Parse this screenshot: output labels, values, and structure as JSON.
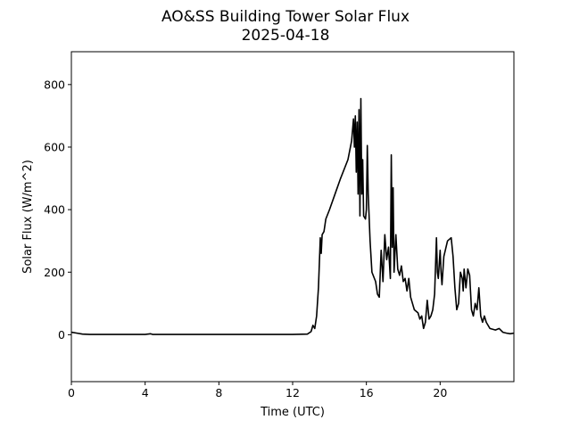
{
  "chart_data": {
    "type": "line",
    "title": "AO&SS Building Tower Solar Flux",
    "subtitle": "2025-04-18",
    "x_label": "Time (UTC)",
    "y_label": "Solar Flux (W/m^2)",
    "xlim": [
      0,
      24
    ],
    "ylim": [
      -150,
      905
    ],
    "xticks": [
      0,
      4,
      8,
      12,
      16,
      20
    ],
    "yticks": [
      0,
      200,
      400,
      600,
      800
    ],
    "series": [
      {
        "color": "#000000",
        "x": [
          0,
          0.3,
          0.6,
          1,
          2,
          3,
          4,
          4.3,
          4.4,
          5,
          6,
          7,
          8,
          9,
          10,
          11,
          12,
          12.8,
          13.0,
          13.1,
          13.2,
          13.3,
          13.4,
          13.5,
          13.55,
          13.6,
          13.7,
          13.8,
          14.0,
          14.3,
          14.6,
          15.0,
          15.2,
          15.3,
          15.35,
          15.4,
          15.45,
          15.5,
          15.55,
          15.6,
          15.65,
          15.7,
          15.75,
          15.8,
          15.85,
          15.95,
          16.0,
          16.05,
          16.1,
          16.2,
          16.3,
          16.5,
          16.6,
          16.7,
          16.8,
          16.9,
          17.0,
          17.1,
          17.2,
          17.3,
          17.35,
          17.4,
          17.45,
          17.5,
          17.6,
          17.7,
          17.8,
          17.9,
          18.0,
          18.1,
          18.2,
          18.3,
          18.4,
          18.5,
          18.6,
          18.8,
          18.9,
          19.0,
          19.1,
          19.2,
          19.3,
          19.4,
          19.5,
          19.6,
          19.7,
          19.8,
          19.85,
          19.9,
          20.0,
          20.05,
          20.1,
          20.2,
          20.4,
          20.6,
          20.7,
          20.8,
          20.9,
          21.0,
          21.1,
          21.2,
          21.25,
          21.3,
          21.4,
          21.5,
          21.6,
          21.7,
          21.8,
          21.9,
          22.0,
          22.1,
          22.2,
          22.3,
          22.4,
          22.5,
          22.7,
          23.0,
          23.2,
          23.4,
          23.6,
          23.8,
          24
        ],
        "values": [
          8,
          5,
          2,
          1,
          1,
          1,
          1,
          3,
          1,
          1,
          1,
          1,
          1,
          1,
          1,
          1,
          1,
          2,
          10,
          30,
          20,
          60,
          150,
          310,
          260,
          320,
          330,
          370,
          400,
          450,
          500,
          560,
          620,
          690,
          600,
          700,
          520,
          680,
          450,
          720,
          380,
          755,
          450,
          560,
          380,
          370,
          400,
          605,
          450,
          300,
          200,
          170,
          130,
          120,
          270,
          170,
          320,
          240,
          280,
          180,
          575,
          280,
          470,
          200,
          320,
          210,
          190,
          220,
          170,
          180,
          140,
          180,
          120,
          100,
          80,
          70,
          50,
          60,
          20,
          40,
          110,
          50,
          60,
          80,
          130,
          310,
          200,
          180,
          270,
          200,
          160,
          250,
          300,
          310,
          250,
          150,
          80,
          100,
          200,
          180,
          140,
          210,
          150,
          210,
          190,
          80,
          60,
          100,
          80,
          150,
          60,
          40,
          60,
          40,
          20,
          15,
          20,
          8,
          5,
          3,
          5
        ]
      }
    ]
  }
}
